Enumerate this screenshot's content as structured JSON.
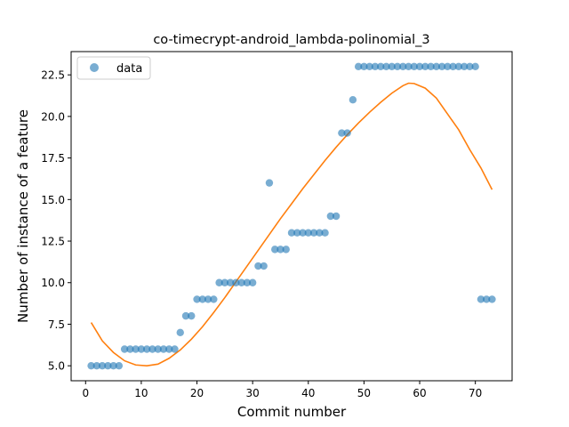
{
  "chart_data": {
    "type": "scatter",
    "title": "co-timecrypt-android_lambda-polinomial_3",
    "xlabel": "Commit number",
    "ylabel": "Number of instance of a feature",
    "xlim": [
      -2.6,
      76.6
    ],
    "ylim": [
      4.1,
      23.9
    ],
    "xticks": [
      0,
      10,
      20,
      30,
      40,
      50,
      60,
      70
    ],
    "yticks": [
      5.0,
      7.5,
      10.0,
      12.5,
      15.0,
      17.5,
      20.0,
      22.5
    ],
    "ytick_labels": [
      "5.0",
      "7.5",
      "10.0",
      "12.5",
      "15.0",
      "17.5",
      "20.0",
      "22.5"
    ],
    "grid": false,
    "legend": {
      "position": "top-left",
      "entries": [
        "data"
      ]
    },
    "series": [
      {
        "name": "data",
        "kind": "scatter",
        "color": "#1f77b4",
        "x": [
          1,
          2,
          3,
          4,
          5,
          6,
          7,
          8,
          9,
          10,
          11,
          12,
          13,
          14,
          15,
          16,
          17,
          18,
          19,
          20,
          21,
          22,
          23,
          24,
          25,
          26,
          27,
          28,
          29,
          30,
          31,
          32,
          33,
          34,
          35,
          36,
          37,
          38,
          39,
          40,
          41,
          42,
          43,
          44,
          45,
          46,
          47,
          48,
          49,
          50,
          51,
          52,
          53,
          54,
          55,
          56,
          57,
          58,
          59,
          60,
          61,
          62,
          63,
          64,
          65,
          66,
          67,
          68,
          69,
          70,
          71,
          72,
          73
        ],
        "y": [
          5,
          5,
          5,
          5,
          5,
          5,
          6,
          6,
          6,
          6,
          6,
          6,
          6,
          6,
          6,
          6,
          7,
          8,
          8,
          9,
          9,
          9,
          9,
          10,
          10,
          10,
          10,
          10,
          10,
          10,
          11,
          11,
          16,
          12,
          12,
          12,
          13,
          13,
          13,
          13,
          13,
          13,
          13,
          14,
          14,
          19,
          19,
          21,
          23,
          23,
          23,
          23,
          23,
          23,
          23,
          23,
          23,
          23,
          23,
          23,
          23,
          23,
          23,
          23,
          23,
          23,
          23,
          23,
          23,
          23,
          9,
          9,
          9
        ]
      },
      {
        "name": "",
        "kind": "line",
        "color": "#ff7f0e",
        "x": [
          1,
          3,
          5,
          7,
          9,
          11,
          13,
          15,
          17,
          19,
          21,
          23,
          25,
          27,
          29,
          31,
          33,
          35,
          37,
          39,
          41,
          43,
          45,
          47,
          49,
          51,
          53,
          55,
          57,
          58,
          59,
          61,
          63,
          65,
          67,
          69,
          71,
          73
        ],
        "y": [
          7.6,
          6.5,
          5.8,
          5.3,
          5.05,
          5.0,
          5.1,
          5.45,
          5.95,
          6.6,
          7.35,
          8.2,
          9.1,
          10.05,
          11.0,
          11.95,
          12.9,
          13.85,
          14.75,
          15.65,
          16.5,
          17.35,
          18.15,
          18.9,
          19.6,
          20.25,
          20.85,
          21.4,
          21.85,
          22.0,
          21.98,
          21.7,
          21.1,
          20.15,
          19.2,
          18.0,
          16.9,
          15.6
        ]
      }
    ]
  }
}
